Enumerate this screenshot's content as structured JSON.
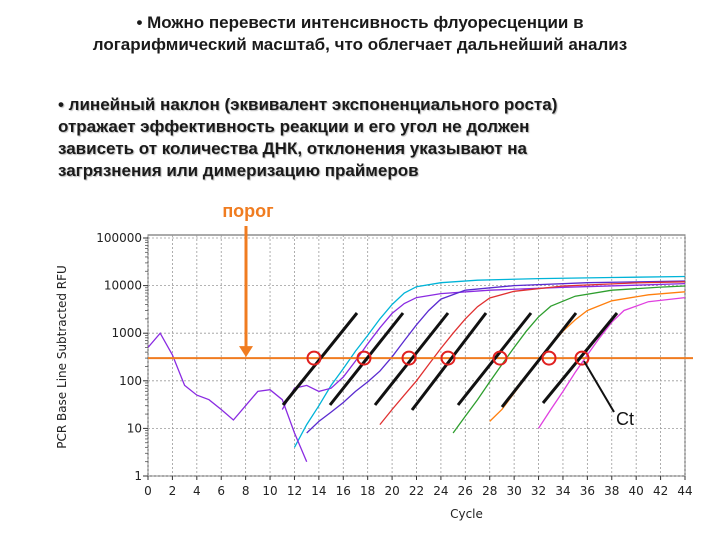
{
  "header": {
    "line1": "• Можно перевести интенсивность флуоресценции в",
    "line2": "логарифмический масштаб, что облегчает дальнейший анализ"
  },
  "bullet": {
    "line1": "• линейный наклон (эквивалент экспоненциального роста)",
    "line2": "отражает эффективность реакции и его угол не должен",
    "line3": "зависеть от количества ДНК, отклонения указывают на",
    "line4": "загрязнения или димеризацию праймеров"
  },
  "annotations": {
    "threshold_label": "порог",
    "ct_label": "Ct"
  },
  "colors": {
    "threshold": "#f07c20",
    "threshold_label": "#f07c20",
    "marker": "#e02020",
    "slope_line": "#111111"
  },
  "chart_data": {
    "type": "line",
    "title": "",
    "xlabel": "Cycle",
    "ylabel": "PCR Base Line Subtracted RFU",
    "y_scale": "log",
    "xlim": [
      0,
      44
    ],
    "ylim": [
      1,
      100000
    ],
    "x_ticks": [
      "0",
      "2",
      "4",
      "6",
      "8",
      "10",
      "12",
      "14",
      "16",
      "18",
      "20",
      "22",
      "24",
      "26",
      "28",
      "30",
      "32",
      "34",
      "36",
      "38",
      "40",
      "42",
      "44"
    ],
    "y_ticks": [
      "1",
      "10",
      "100",
      "1000",
      "10000",
      "100000"
    ],
    "grid": true,
    "threshold": 300,
    "series": [
      {
        "color": "#00b4d8",
        "points": [
          [
            12,
            4
          ],
          [
            13,
            12
          ],
          [
            14,
            30
          ],
          [
            15,
            80
          ],
          [
            16,
            180
          ],
          [
            17,
            420
          ],
          [
            18,
            900
          ],
          [
            19,
            2000
          ],
          [
            20,
            4000
          ],
          [
            21,
            7000
          ],
          [
            22,
            9500
          ],
          [
            24,
            11500
          ],
          [
            27,
            13000
          ],
          [
            32,
            14000
          ],
          [
            38,
            14800
          ],
          [
            44,
            15500
          ]
        ]
      },
      {
        "color": "#8a2be2",
        "points": [
          [
            11,
            25
          ],
          [
            12,
            70
          ],
          [
            13,
            80
          ],
          [
            14,
            60
          ],
          [
            15,
            70
          ],
          [
            16,
            120
          ],
          [
            17,
            260
          ],
          [
            18,
            600
          ],
          [
            19,
            1300
          ],
          [
            20,
            2600
          ],
          [
            21,
            4200
          ],
          [
            22,
            5600
          ],
          [
            24,
            6800
          ],
          [
            28,
            8000
          ],
          [
            34,
            9200
          ],
          [
            40,
            10200
          ],
          [
            44,
            11000
          ]
        ]
      },
      {
        "color": "#5a2bd0",
        "points": [
          [
            13,
            8
          ],
          [
            14,
            14
          ],
          [
            15,
            22
          ],
          [
            16,
            35
          ],
          [
            17,
            60
          ],
          [
            18,
            95
          ],
          [
            19,
            160
          ],
          [
            20,
            320
          ],
          [
            21,
            700
          ],
          [
            22,
            1500
          ],
          [
            23,
            3000
          ],
          [
            24,
            5200
          ],
          [
            26,
            8000
          ],
          [
            30,
            10000
          ],
          [
            36,
            11500
          ],
          [
            44,
            12500
          ]
        ]
      },
      {
        "color": "#e03030",
        "points": [
          [
            19,
            12
          ],
          [
            20,
            25
          ],
          [
            21,
            50
          ],
          [
            22,
            100
          ],
          [
            23,
            220
          ],
          [
            24,
            480
          ],
          [
            25,
            1000
          ],
          [
            26,
            2000
          ],
          [
            27,
            3600
          ],
          [
            28,
            5500
          ],
          [
            30,
            7600
          ],
          [
            34,
            9800
          ],
          [
            40,
            11400
          ],
          [
            44,
            12000
          ]
        ]
      },
      {
        "color": "#2e9e2e",
        "points": [
          [
            25,
            8
          ],
          [
            26,
            18
          ],
          [
            27,
            40
          ],
          [
            28,
            95
          ],
          [
            29,
            220
          ],
          [
            30,
            500
          ],
          [
            31,
            1100
          ],
          [
            32,
            2200
          ],
          [
            33,
            3700
          ],
          [
            35,
            6000
          ],
          [
            38,
            8000
          ],
          [
            42,
            9300
          ],
          [
            44,
            9800
          ]
        ]
      },
      {
        "color": "#ff7f0e",
        "points": [
          [
            28,
            14
          ],
          [
            29,
            25
          ],
          [
            30,
            55
          ],
          [
            31,
            120
          ],
          [
            32,
            260
          ],
          [
            33,
            550
          ],
          [
            34,
            1100
          ],
          [
            35,
            1900
          ],
          [
            36,
            3000
          ],
          [
            38,
            4800
          ],
          [
            41,
            6400
          ],
          [
            44,
            7400
          ]
        ]
      },
      {
        "color": "#e040e0",
        "points": [
          [
            32,
            10
          ],
          [
            33,
            25
          ],
          [
            34,
            60
          ],
          [
            35,
            150
          ],
          [
            36,
            350
          ],
          [
            37,
            800
          ],
          [
            38,
            1700
          ],
          [
            39,
            3000
          ],
          [
            41,
            4600
          ],
          [
            44,
            5600
          ]
        ]
      },
      {
        "color": "#8a2be2",
        "points": [
          [
            0,
            500
          ],
          [
            1,
            1000
          ],
          [
            2,
            350
          ],
          [
            3,
            80
          ],
          [
            4,
            50
          ],
          [
            5,
            40
          ],
          [
            6,
            25
          ],
          [
            7,
            15
          ],
          [
            8,
            30
          ],
          [
            9,
            60
          ],
          [
            10,
            65
          ],
          [
            11,
            40
          ],
          [
            12,
            8
          ],
          [
            13,
            2
          ]
        ]
      }
    ]
  }
}
